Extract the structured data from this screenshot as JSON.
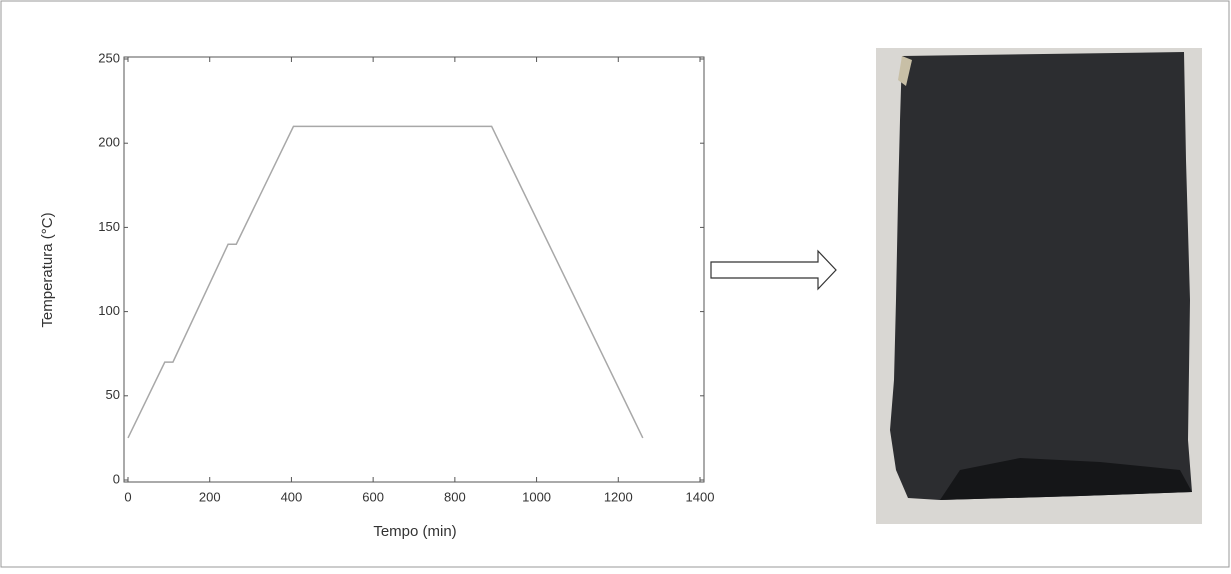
{
  "chart_data": {
    "type": "line",
    "xlabel": "Tempo (min)",
    "ylabel": "Temperatura (°C)",
    "x": [
      0,
      90,
      110,
      245,
      265,
      405,
      890,
      1260
    ],
    "series": [
      {
        "color": "#a8a8a8",
        "values": [
          25,
          70,
          70,
          140,
          140,
          210,
          210,
          25
        ]
      }
    ],
    "xlim": [
      0,
      1400
    ],
    "xticks": [
      0,
      200,
      400,
      600,
      800,
      1000,
      1200,
      1400
    ],
    "ylim": [
      0,
      250
    ],
    "yticks": [
      0,
      50,
      100,
      150,
      200,
      250
    ]
  }
}
